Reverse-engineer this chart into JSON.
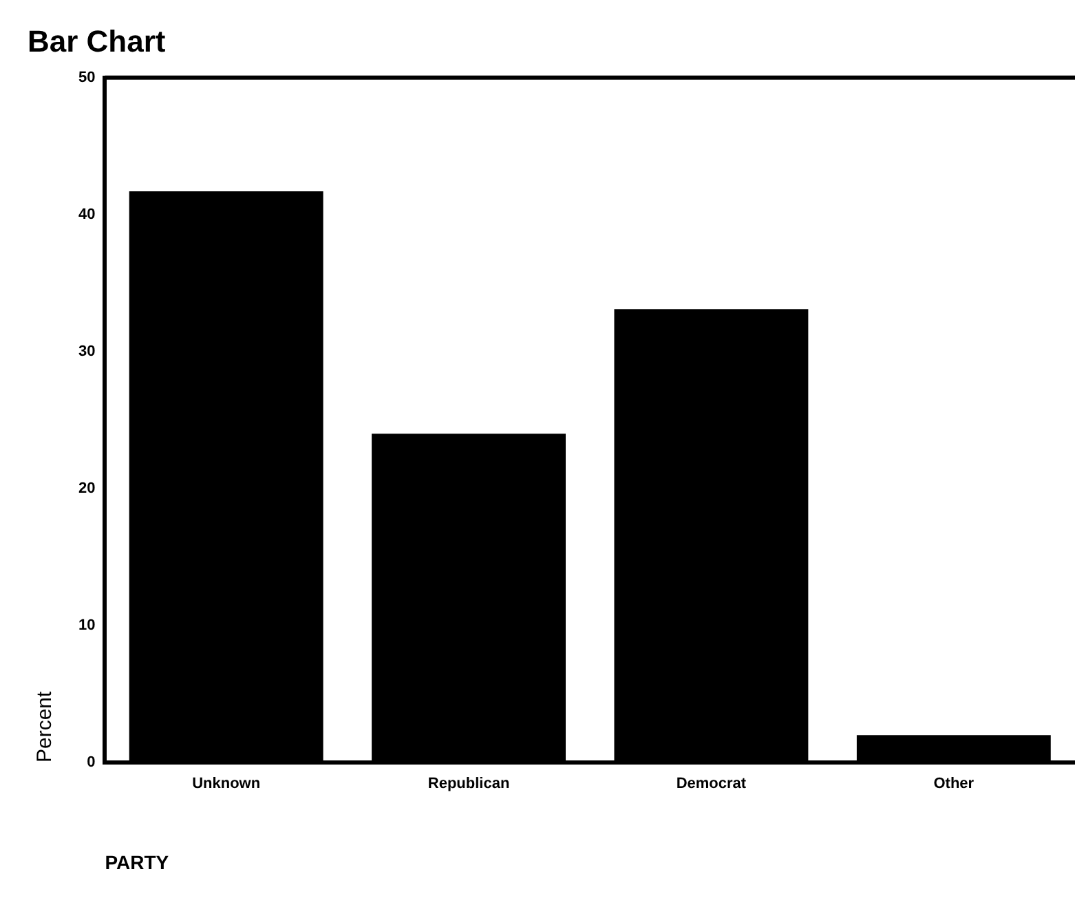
{
  "chart_data": {
    "type": "bar",
    "title": "Bar Chart",
    "xlabel": "PARTY",
    "ylabel": "Percent",
    "categories": [
      "Unknown",
      "Republican",
      "Democrat",
      "Other"
    ],
    "values": [
      41.7,
      24.0,
      33.1,
      2.0
    ],
    "color": "#000000",
    "ylim": [
      0,
      50
    ],
    "yticks": [
      0,
      10,
      20,
      30,
      40,
      50
    ],
    "grid": false,
    "legend": false
  }
}
